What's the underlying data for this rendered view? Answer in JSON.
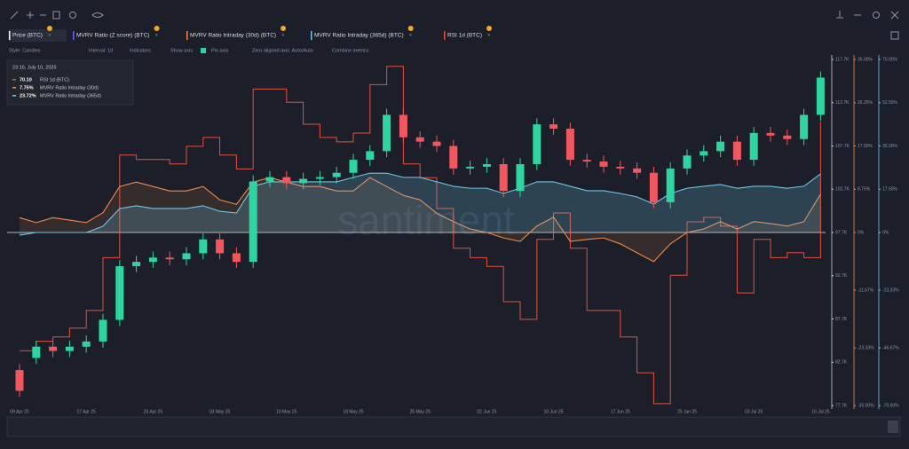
{
  "toolbar": {
    "inactive_metric": "MVRV Ratio (Z score) (BTC)",
    "options": [
      "Style: Candles",
      "Interval: 1d",
      "Indicators",
      "Show axis",
      "Pin axis",
      "Zero aligned axis: Auto/Auto",
      "Combine metrics"
    ]
  },
  "tooltip": {
    "date": "23:16, July 10, 2025",
    "rows": [
      {
        "value": "70.10",
        "name": "RSI 1d (BTC)"
      },
      {
        "value": "7.75%",
        "name": "MVRV Ratio Intraday (30d)"
      },
      {
        "value": "23.72%",
        "name": "MVRV Ratio Intraday (365d)"
      }
    ]
  },
  "watermark": "santiment",
  "chart_data": {
    "type": "candlestick",
    "categories": [
      "09 Apr 25",
      null,
      null,
      null,
      "17 Apr 25",
      null,
      null,
      null,
      "25 Apr 25",
      null,
      null,
      null,
      "03 May 25",
      null,
      null,
      null,
      "10 May 25",
      null,
      null,
      null,
      "18 May 25",
      null,
      null,
      null,
      "25 May 25",
      null,
      null,
      null,
      "02 Jun 25",
      null,
      null,
      null,
      "10 Jun 25",
      null,
      null,
      null,
      "17 Jun 25",
      null,
      null,
      null,
      "25 Jun 25",
      null,
      null,
      null,
      "03 Jul 25",
      null,
      null,
      null,
      "10 Jul 25"
    ],
    "series": [
      {
        "name": "Price (BTC)",
        "type": "candlestick",
        "axis": "y",
        "color_up": "#2fd4a0",
        "color_down": "#f0575e",
        "open": [
          81800,
          83200,
          84500,
          84000,
          84500,
          85100,
          87600,
          93800,
          94300,
          94800,
          94600,
          95300,
          96900,
          95300,
          94300,
          103600,
          104100,
          103400,
          103900,
          104100,
          104600,
          106100,
          107100,
          111300,
          108700,
          108200,
          107700,
          105100,
          105300,
          105600,
          102500,
          105600,
          110200,
          109700,
          106100,
          105900,
          105300,
          105100,
          104600,
          101200,
          105100,
          106600,
          107100,
          108200,
          106100,
          109200,
          108900,
          108500,
          111300
        ],
        "high": [
          82500,
          85200,
          85200,
          85200,
          85800,
          88300,
          94500,
          95000,
          95500,
          95500,
          96000,
          97600,
          97600,
          96000,
          104300,
          104800,
          104800,
          104600,
          104800,
          105300,
          106800,
          107800,
          112000,
          112000,
          109400,
          108900,
          108400,
          106000,
          106300,
          106300,
          106300,
          110900,
          110900,
          110400,
          106800,
          106600,
          106000,
          105800,
          105300,
          105800,
          107300,
          107800,
          108900,
          108900,
          109900,
          109900,
          109600,
          112000,
          116300
        ],
        "low": [
          78700,
          82500,
          83300,
          83300,
          83800,
          84400,
          86900,
          93100,
          93600,
          93900,
          93900,
          94600,
          94600,
          93600,
          93600,
          102900,
          102700,
          102700,
          103200,
          103400,
          103900,
          105400,
          106400,
          108000,
          107500,
          107000,
          104400,
          104400,
          104600,
          101800,
          101800,
          104900,
          109000,
          105400,
          105200,
          104600,
          104400,
          103900,
          100500,
          100500,
          104400,
          105900,
          106400,
          105400,
          105400,
          108200,
          107800,
          107800,
          110600
        ],
        "close": [
          79400,
          84500,
          84000,
          84500,
          85100,
          87600,
          93800,
          94300,
          94800,
          94600,
          95300,
          96900,
          95300,
          94300,
          103600,
          104100,
          103400,
          103900,
          104100,
          104600,
          106100,
          107100,
          111300,
          108700,
          108200,
          107700,
          105100,
          105300,
          105600,
          102500,
          105600,
          110200,
          109700,
          106100,
          105900,
          105300,
          105100,
          104600,
          101200,
          105100,
          106600,
          107100,
          108200,
          106100,
          109200,
          108900,
          108500,
          111300,
          115600
        ]
      },
      {
        "name": "MVRV Ratio Intraday (30d) (BTC)",
        "type": "line",
        "axis": "y2",
        "color": "#f0894a",
        "values": [
          3,
          2,
          3,
          2.5,
          2,
          4,
          9.3,
          10.2,
          9.3,
          8.4,
          8.4,
          9.3,
          6.6,
          5.7,
          10.2,
          11.1,
          10.2,
          9.3,
          9.3,
          8.4,
          8.4,
          11.1,
          9.3,
          7.5,
          6.6,
          3.9,
          2.2,
          0.7,
          0,
          -1.1,
          -1.8,
          1.3,
          3.1,
          -1.8,
          -1.4,
          -1.1,
          -2.3,
          -4.1,
          -5.9,
          -2.3,
          0,
          0.7,
          2.2,
          0.7,
          2.2,
          1.8,
          1.3,
          2.2,
          7.75
        ]
      },
      {
        "name": "MVRV Ratio Intraday (365d) (BTC)",
        "type": "line",
        "axis": "y3",
        "color": "#6fc6e4",
        "values": [
          -1.1,
          0,
          0,
          0,
          0,
          2.5,
          9.7,
          10.8,
          9.7,
          9.7,
          9.7,
          10.8,
          8.6,
          7.9,
          18.7,
          20.5,
          20.5,
          20.5,
          20.5,
          20.5,
          22.3,
          24,
          24,
          22.3,
          22.3,
          20.5,
          18.7,
          17.9,
          17.9,
          15.8,
          17.9,
          20.5,
          20.5,
          18.7,
          16.9,
          16.9,
          15.8,
          14.4,
          11.5,
          15.8,
          17.9,
          18.7,
          19.4,
          17.9,
          18.7,
          18.7,
          17.9,
          18.7,
          23.72
        ]
      },
      {
        "name": "RSI 1d (BTC)",
        "type": "line",
        "step": true,
        "axis": "y4",
        "color": "#e0513f",
        "values": [
          33.7,
          35.2,
          35.9,
          37.3,
          40.1,
          48.5,
          64.8,
          64.1,
          64.1,
          63.4,
          66.2,
          67.6,
          64.8,
          62.6,
          75.3,
          75.3,
          73.2,
          69.7,
          67.6,
          66.9,
          68.3,
          76,
          78.9,
          63.4,
          61.2,
          56.3,
          50,
          48.5,
          47.1,
          41.5,
          38.7,
          51.4,
          55.6,
          50,
          40.1,
          40.1,
          35.9,
          30.2,
          25.3,
          45.7,
          54.2,
          54.9,
          53.5,
          42.9,
          51.4,
          48.5,
          49.3,
          48.5,
          70.1
        ]
      }
    ],
    "ylim": [
      77700,
      117700
    ],
    "yticks": [
      {
        "value": 117700,
        "label": "117.7K"
      },
      {
        "value": 112700,
        "label": "112.7K"
      },
      {
        "value": 107700,
        "label": "107.7K"
      },
      {
        "value": 102700,
        "label": "102.7K"
      },
      {
        "value": 97700,
        "label": "97.7K"
      },
      {
        "value": 92700,
        "label": "92.7K"
      },
      {
        "value": 87700,
        "label": "87.7K"
      },
      {
        "value": 82700,
        "label": "82.7K"
      },
      {
        "value": 77700,
        "label": "77.7K"
      }
    ],
    "y2lim": [
      -35,
      35
    ],
    "y2ticks": [
      {
        "value": 35,
        "label": "35.00%"
      },
      {
        "value": 26.25,
        "label": "26.25%"
      },
      {
        "value": 17.5,
        "label": "17.50%"
      },
      {
        "value": 8.75,
        "label": "8.75%"
      },
      {
        "value": 0,
        "label": "0%"
      },
      {
        "value": -11.67,
        "label": "-11.67%"
      },
      {
        "value": -23.33,
        "label": "-23.33%"
      },
      {
        "value": -35,
        "label": "-35.00%"
      }
    ],
    "y3lim": [
      -70,
      70
    ],
    "y3ticks": [
      {
        "value": 70,
        "label": "70.00%"
      },
      {
        "value": 52.5,
        "label": "52.50%"
      },
      {
        "value": 35,
        "label": "35.00%"
      },
      {
        "value": 17.5,
        "label": "17.50%"
      },
      {
        "value": 0,
        "label": "0%"
      },
      {
        "value": -23.33,
        "label": "-23.33%"
      },
      {
        "value": -46.67,
        "label": "-46.67%"
      },
      {
        "value": -70,
        "label": "-70.00%"
      }
    ],
    "y4lim": [
      25,
      80
    ]
  }
}
